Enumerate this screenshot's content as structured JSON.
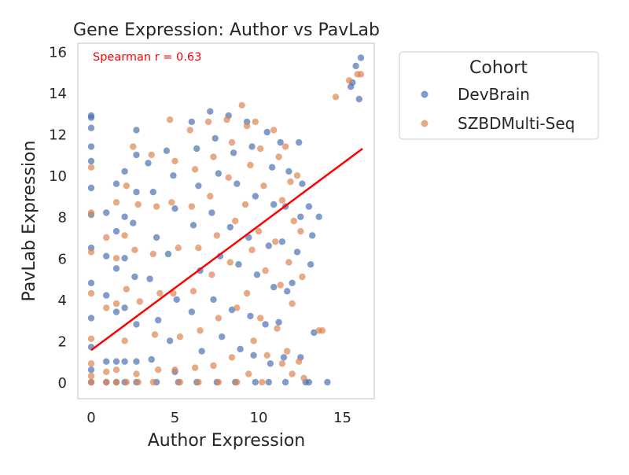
{
  "chart_data": {
    "type": "scatter",
    "title": "Gene Expression: Author vs PavLab",
    "xlabel": "Author Expression",
    "ylabel": "PavLab Expression",
    "xlim": [
      -0.8,
      16.9
    ],
    "ylim": [
      -0.8,
      16.4
    ],
    "x_ticks": [
      0,
      5,
      10,
      15
    ],
    "y_ticks": [
      0,
      2,
      4,
      6,
      8,
      10,
      12,
      14,
      16
    ],
    "grid": false,
    "legend": {
      "title": "Cohort",
      "placement": "outside-right"
    },
    "annotation": {
      "text": "Spearman r = 0.63",
      "color": "#ff0000"
    },
    "trend_line": {
      "color": "#ff0000",
      "x": [
        0,
        16.2
      ],
      "y": [
        1.55,
        11.3
      ]
    },
    "series": [
      {
        "name": "DevBrain",
        "color": "#4c72b0",
        "points": [
          [
            0,
            12.9
          ],
          [
            0,
            12.8
          ],
          [
            0,
            12.3
          ],
          [
            0,
            11.4
          ],
          [
            0,
            10.7
          ],
          [
            0,
            9.4
          ],
          [
            0,
            8.1
          ],
          [
            0,
            6.5
          ],
          [
            0,
            4.8
          ],
          [
            0,
            3.1
          ],
          [
            0,
            1.7
          ],
          [
            0,
            0.6
          ],
          [
            0,
            0
          ],
          [
            0.9,
            8.2
          ],
          [
            0.9,
            6.1
          ],
          [
            0.9,
            4.2
          ],
          [
            0.9,
            1.0
          ],
          [
            0.9,
            0
          ],
          [
            1.5,
            9.6
          ],
          [
            1.5,
            7.3
          ],
          [
            1.5,
            5.5
          ],
          [
            1.5,
            3.4
          ],
          [
            1.5,
            1.0
          ],
          [
            1.5,
            0
          ],
          [
            2.0,
            10.2
          ],
          [
            2.0,
            8.0
          ],
          [
            2.0,
            6.0
          ],
          [
            2.0,
            3.6
          ],
          [
            2.0,
            1.0
          ],
          [
            2.0,
            0
          ],
          [
            2.7,
            12.2
          ],
          [
            2.7,
            11.0
          ],
          [
            2.7,
            9.2
          ],
          [
            2.5,
            7.7
          ],
          [
            2.6,
            5.1
          ],
          [
            2.7,
            2.8
          ],
          [
            2.7,
            1.0
          ],
          [
            2.7,
            0
          ],
          [
            3.4,
            10.6
          ],
          [
            3.7,
            9.2
          ],
          [
            3.9,
            7.0
          ],
          [
            3.5,
            5.0
          ],
          [
            4.0,
            3.0
          ],
          [
            3.6,
            1.1
          ],
          [
            3.9,
            0
          ],
          [
            4.5,
            11.2
          ],
          [
            4.9,
            10.0
          ],
          [
            5.0,
            8.4
          ],
          [
            4.6,
            6.2
          ],
          [
            5.1,
            4.0
          ],
          [
            4.7,
            2.0
          ],
          [
            5.0,
            0.5
          ],
          [
            5.2,
            0
          ],
          [
            6.0,
            12.6
          ],
          [
            6.3,
            11.3
          ],
          [
            6.4,
            9.5
          ],
          [
            6.1,
            7.6
          ],
          [
            6.5,
            5.4
          ],
          [
            6.0,
            3.4
          ],
          [
            6.6,
            1.5
          ],
          [
            6.3,
            0
          ],
          [
            7.1,
            13.1
          ],
          [
            7.4,
            11.8
          ],
          [
            7.6,
            10.1
          ],
          [
            7.2,
            8.2
          ],
          [
            7.7,
            6.1
          ],
          [
            7.3,
            4.0
          ],
          [
            7.8,
            2.2
          ],
          [
            7.5,
            0
          ],
          [
            8.2,
            12.9
          ],
          [
            8.5,
            11.1
          ],
          [
            8.7,
            9.6
          ],
          [
            8.3,
            7.5
          ],
          [
            8.8,
            5.7
          ],
          [
            8.4,
            3.5
          ],
          [
            8.9,
            1.6
          ],
          [
            8.6,
            0
          ],
          [
            9.3,
            12.6
          ],
          [
            9.6,
            11.4
          ],
          [
            9.8,
            9.0
          ],
          [
            9.4,
            7.0
          ],
          [
            9.9,
            5.2
          ],
          [
            9.5,
            3.2
          ],
          [
            9.7,
            1.3
          ],
          [
            9.8,
            0
          ],
          [
            10.5,
            12.1
          ],
          [
            10.8,
            10.4
          ],
          [
            10.9,
            8.6
          ],
          [
            10.6,
            6.6
          ],
          [
            10.9,
            4.6
          ],
          [
            10.4,
            2.8
          ],
          [
            10.7,
            0.9
          ],
          [
            10.6,
            0
          ],
          [
            11.3,
            11.6
          ],
          [
            11.8,
            10.2
          ],
          [
            11.6,
            8.5
          ],
          [
            11.4,
            6.8
          ],
          [
            11.7,
            4.4
          ],
          [
            11.2,
            2.9
          ],
          [
            11.5,
            1.2
          ],
          [
            11.6,
            0
          ],
          [
            12.4,
            11.6
          ],
          [
            12.6,
            9.6
          ],
          [
            12.5,
            8.0
          ],
          [
            12.3,
            6.3
          ],
          [
            12.0,
            4.8
          ],
          [
            12.5,
            1.2
          ],
          [
            12.8,
            0
          ],
          [
            13.0,
            8.5
          ],
          [
            13.2,
            7.1
          ],
          [
            13.1,
            5.7
          ],
          [
            13.6,
            8.0
          ],
          [
            13.3,
            2.4
          ],
          [
            13.0,
            0
          ],
          [
            14.1,
            0
          ],
          [
            16.0,
            13.7
          ],
          [
            16.1,
            15.7
          ],
          [
            15.6,
            14.5
          ],
          [
            15.8,
            15.3
          ],
          [
            15.5,
            14.3
          ]
        ]
      },
      {
        "name": "SZBDMulti-Seq",
        "color": "#dd8452",
        "points": [
          [
            0,
            10.4
          ],
          [
            0,
            8.2
          ],
          [
            0,
            6.3
          ],
          [
            0,
            4.3
          ],
          [
            0,
            2.1
          ],
          [
            0,
            0.9
          ],
          [
            0,
            0.3
          ],
          [
            0,
            0
          ],
          [
            0.9,
            7.0
          ],
          [
            0.9,
            3.6
          ],
          [
            0.9,
            0.5
          ],
          [
            0.9,
            0
          ],
          [
            1.5,
            8.7
          ],
          [
            1.5,
            6.0
          ],
          [
            1.5,
            3.8
          ],
          [
            1.5,
            0.6
          ],
          [
            1.5,
            0
          ],
          [
            2.1,
            9.5
          ],
          [
            2.0,
            7.1
          ],
          [
            2.1,
            4.5
          ],
          [
            2.0,
            2.0
          ],
          [
            2.1,
            0
          ],
          [
            2.5,
            11.4
          ],
          [
            2.8,
            8.6
          ],
          [
            2.6,
            6.4
          ],
          [
            2.9,
            3.9
          ],
          [
            2.7,
            0.4
          ],
          [
            2.8,
            0
          ],
          [
            3.6,
            11.0
          ],
          [
            3.9,
            8.5
          ],
          [
            3.7,
            6.2
          ],
          [
            4.1,
            4.3
          ],
          [
            3.8,
            2.3
          ],
          [
            4.0,
            0.6
          ],
          [
            3.7,
            0
          ],
          [
            4.7,
            12.7
          ],
          [
            5.0,
            10.7
          ],
          [
            4.8,
            8.7
          ],
          [
            5.2,
            6.5
          ],
          [
            4.9,
            4.3
          ],
          [
            5.3,
            2.2
          ],
          [
            5.0,
            0.6
          ],
          [
            5.3,
            0
          ],
          [
            5.9,
            12.2
          ],
          [
            6.2,
            10.3
          ],
          [
            6.0,
            8.5
          ],
          [
            6.4,
            6.5
          ],
          [
            6.1,
            4.4
          ],
          [
            6.5,
            2.5
          ],
          [
            6.2,
            0.7
          ],
          [
            6.4,
            0
          ],
          [
            7.0,
            12.6
          ],
          [
            7.3,
            10.9
          ],
          [
            7.1,
            9.0
          ],
          [
            7.5,
            7.1
          ],
          [
            7.2,
            5.2
          ],
          [
            7.6,
            3.1
          ],
          [
            7.3,
            0.8
          ],
          [
            7.6,
            0
          ],
          [
            8.1,
            12.7
          ],
          [
            8.4,
            11.6
          ],
          [
            8.2,
            9.9
          ],
          [
            8.6,
            7.8
          ],
          [
            8.3,
            5.8
          ],
          [
            8.7,
            3.6
          ],
          [
            8.4,
            1.2
          ],
          [
            8.7,
            0
          ],
          [
            9.0,
            13.4
          ],
          [
            9.3,
            12.4
          ],
          [
            9.5,
            10.5
          ],
          [
            9.2,
            8.6
          ],
          [
            9.6,
            6.4
          ],
          [
            9.3,
            4.3
          ],
          [
            9.7,
            2.0
          ],
          [
            9.4,
            0.4
          ],
          [
            9.8,
            12.6
          ],
          [
            10.1,
            11.3
          ],
          [
            10.3,
            9.5
          ],
          [
            10.0,
            7.3
          ],
          [
            10.4,
            5.4
          ],
          [
            10.1,
            3.1
          ],
          [
            10.5,
            1.3
          ],
          [
            10.2,
            0
          ],
          [
            10.9,
            12.2
          ],
          [
            11.2,
            10.9
          ],
          [
            11.4,
            8.8
          ],
          [
            11.0,
            6.8
          ],
          [
            11.3,
            4.7
          ],
          [
            11.1,
            2.6
          ],
          [
            11.4,
            0.9
          ],
          [
            11.6,
            11.4
          ],
          [
            11.9,
            9.7
          ],
          [
            12.1,
            7.8
          ],
          [
            11.8,
            5.8
          ],
          [
            12.0,
            3.8
          ],
          [
            11.7,
            1.5
          ],
          [
            12.0,
            0.4
          ],
          [
            12.3,
            10.0
          ],
          [
            12.5,
            7.3
          ],
          [
            12.6,
            5.1
          ],
          [
            12.4,
            1.0
          ],
          [
            12.7,
            0.2
          ],
          [
            13.6,
            2.5
          ],
          [
            13.8,
            2.5
          ],
          [
            14.6,
            13.8
          ],
          [
            15.4,
            14.6
          ],
          [
            15.9,
            14.9
          ],
          [
            16.1,
            14.9
          ]
        ]
      }
    ]
  }
}
